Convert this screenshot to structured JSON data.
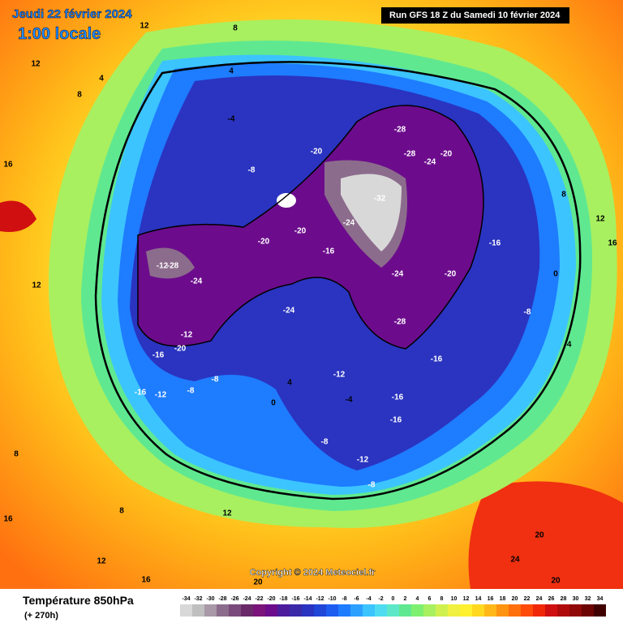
{
  "header": {
    "date": "Jeudi 22 février 2024",
    "time": "1:00 locale",
    "run": "Run GFS 18 Z du Samedi 10 février 2024"
  },
  "copyright": "Copyright © 2024 Meteociel.fr",
  "legend": {
    "title": "Température 850hPa",
    "lead": "(+ 270h)",
    "ticks": [
      -34,
      -32,
      -30,
      -28,
      -26,
      -24,
      -22,
      -20,
      -18,
      -16,
      -14,
      -12,
      -10,
      -8,
      -6,
      -4,
      -2,
      0,
      2,
      4,
      6,
      8,
      10,
      12,
      14,
      16,
      18,
      20,
      22,
      24,
      26,
      28,
      30,
      32,
      34
    ],
    "colors": [
      "#d8d8d8",
      "#bfbfbf",
      "#a898a8",
      "#8c6c8c",
      "#7a4a7a",
      "#6a2a6a",
      "#7a147a",
      "#6c0c8c",
      "#4c1c9c",
      "#3a2aa8",
      "#2a34c0",
      "#2046d8",
      "#1c5cf0",
      "#1e7cff",
      "#2ca0ff",
      "#3cc4ff",
      "#50dcf0",
      "#5ce8c8",
      "#60e890",
      "#7ef070",
      "#a8f060",
      "#d0f050",
      "#f0f040",
      "#fff030",
      "#ffd820",
      "#ffb818",
      "#ff9410",
      "#ff700c",
      "#ff4a08",
      "#f02808",
      "#d01010",
      "#b00a0a",
      "#900808",
      "#6c0404",
      "#400000"
    ]
  },
  "map": {
    "labels": [
      12,
      8,
      4,
      4,
      8,
      16,
      12,
      -4,
      -8,
      -20,
      -28,
      -28,
      -24,
      -20,
      -32,
      -24,
      -16,
      -20,
      -20,
      -12,
      -28,
      -24,
      -16,
      -20,
      -12,
      -8,
      -16,
      -12,
      -8,
      4,
      0,
      -4,
      -12,
      -16,
      -16,
      -8,
      -12,
      -8,
      -16,
      -28,
      -24,
      -20,
      -16,
      -8,
      -4,
      0,
      8,
      12,
      16,
      12,
      8,
      12,
      16,
      12,
      20,
      24,
      20,
      16,
      20,
      8,
      -24
    ]
  }
}
